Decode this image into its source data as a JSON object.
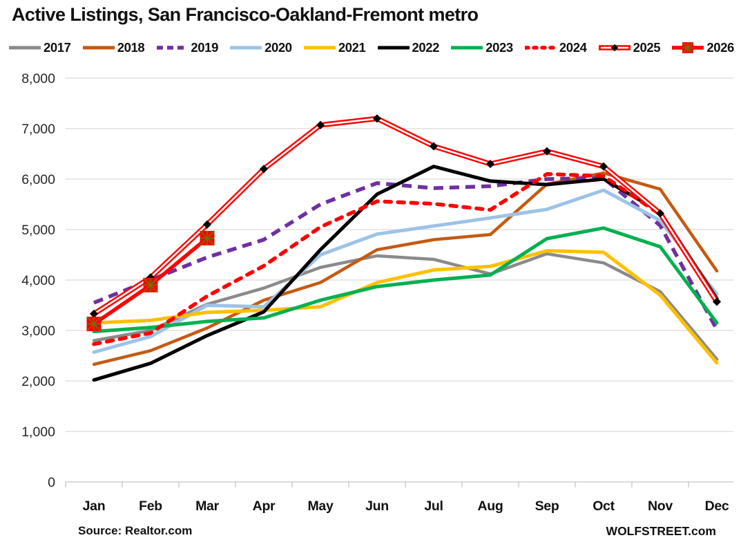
{
  "header": {
    "title": "Active Listings, San Francisco-Oakland-Fremont metro"
  },
  "footer": {
    "source": "Source: Realtor.com",
    "brand": "WOLFSTREET.com"
  },
  "chart_data": {
    "type": "line",
    "title": "Active Listings, San Francisco-Oakland-Fremont metro",
    "xlabel": "",
    "ylabel": "",
    "categories": [
      "Jan",
      "Feb",
      "Mar",
      "Apr",
      "May",
      "Jun",
      "Jul",
      "Aug",
      "Sep",
      "Oct",
      "Nov",
      "Dec"
    ],
    "y_axis": {
      "min": 0,
      "max": 8000,
      "step": 1000,
      "tick_labels": [
        "0",
        "1,000",
        "2,000",
        "3,000",
        "4,000",
        "5,000",
        "6,000",
        "7,000",
        "8,000"
      ]
    },
    "grid": true,
    "legend_position": "top",
    "grid_color": "#d9d9d9",
    "series": [
      {
        "name": "2017",
        "color": "#8a8a8a",
        "line_style": "solid",
        "width": 4.5,
        "marker": "none",
        "values": [
          2800,
          3000,
          3520,
          3840,
          4250,
          4480,
          4410,
          4120,
          4520,
          4340,
          3770,
          2430
        ]
      },
      {
        "name": "2018",
        "color": "#c55a11",
        "line_style": "solid",
        "width": 4.5,
        "marker": "none",
        "values": [
          2330,
          2600,
          3050,
          3600,
          3950,
          4600,
          4800,
          4900,
          5900,
          6120,
          5800,
          4180
        ]
      },
      {
        "name": "2019",
        "color": "#7030a0",
        "line_style": "dashed",
        "width": 5.5,
        "marker": "none",
        "values": [
          3550,
          4000,
          4450,
          4800,
          5500,
          5920,
          5820,
          5860,
          6000,
          6020,
          5080,
          3020
        ]
      },
      {
        "name": "2020",
        "color": "#9dc3e6",
        "line_style": "solid",
        "width": 5,
        "marker": "none",
        "values": [
          2570,
          2880,
          3500,
          3470,
          4500,
          4910,
          5070,
          5230,
          5400,
          5780,
          5180,
          3720
        ]
      },
      {
        "name": "2021",
        "color": "#ffc000",
        "line_style": "solid",
        "width": 5,
        "marker": "none",
        "values": [
          3150,
          3200,
          3360,
          3400,
          3470,
          3950,
          4200,
          4270,
          4580,
          4550,
          3700,
          2360
        ]
      },
      {
        "name": "2022",
        "color": "#000000",
        "line_style": "solid",
        "width": 5,
        "marker": "none",
        "values": [
          2020,
          2350,
          2900,
          3370,
          4600,
          5700,
          6250,
          5960,
          5890,
          6000,
          5350,
          3630
        ]
      },
      {
        "name": "2023",
        "color": "#00b050",
        "line_style": "solid",
        "width": 5,
        "marker": "none",
        "values": [
          2980,
          3060,
          3180,
          3250,
          3600,
          3870,
          4000,
          4100,
          4820,
          5030,
          4660,
          3150
        ]
      },
      {
        "name": "2024",
        "color": "#ff0000",
        "line_style": "dashed-round",
        "width": 5.5,
        "marker": "none",
        "values": [
          2730,
          2950,
          3680,
          4280,
          5050,
          5560,
          5510,
          5390,
          6100,
          6060,
          5300,
          3550
        ]
      },
      {
        "name": "2025",
        "color": "#ff0000",
        "line_style": "double",
        "width": 7.5,
        "marker": "black-diamond",
        "marker_color": "#000000",
        "values": [
          3330,
          4050,
          5100,
          6200,
          7070,
          7200,
          6650,
          6300,
          6550,
          6250,
          5320,
          3570
        ]
      },
      {
        "name": "2026",
        "color": "#ff0000",
        "line_style": "solid",
        "width": 5.5,
        "marker": "red-square-x",
        "marker_color": "#ff0000",
        "marker_x_color": "#6d7500",
        "values": [
          3130,
          3900,
          4830,
          null,
          null,
          null,
          null,
          null,
          null,
          null,
          null,
          null
        ]
      }
    ]
  }
}
